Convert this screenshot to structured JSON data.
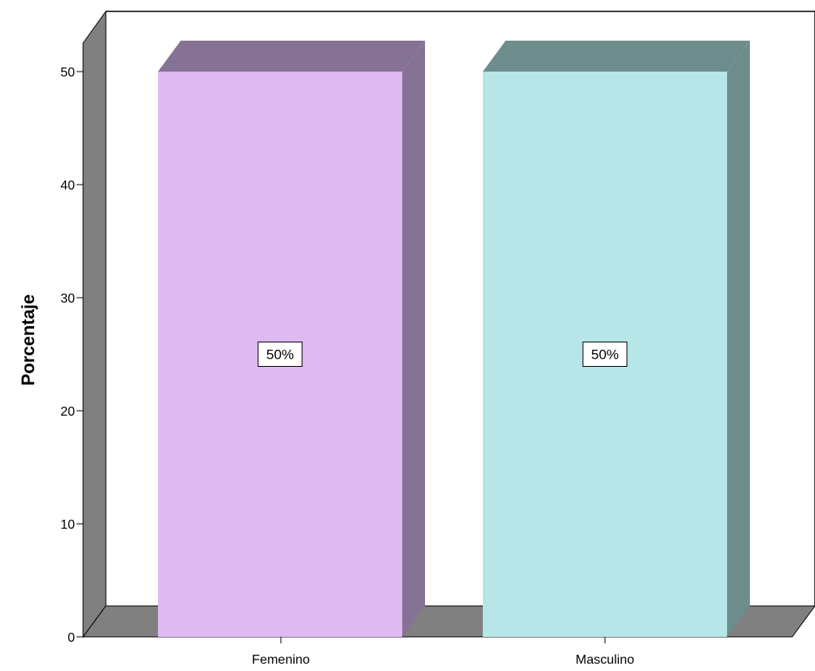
{
  "chart_data": {
    "type": "bar",
    "categories": [
      "Femenino",
      "Masculino"
    ],
    "values": [
      50,
      50
    ],
    "data_labels": [
      "50%",
      "50%"
    ],
    "ylabel": "Porcentaje",
    "xlabel": "",
    "ylim": [
      0,
      50
    ],
    "yticks": [
      0,
      10,
      20,
      30,
      40,
      50
    ],
    "grid": false,
    "legend": "none",
    "style": "3d",
    "colors": {
      "bars": [
        "#dfb9f2",
        "#b6e6e8"
      ],
      "bar_sides": [
        "#867294",
        "#6e8c8c"
      ],
      "bar_tops": [
        "#867294",
        "#6e8c8c"
      ],
      "floor": "#808080",
      "wall": "#808080",
      "background": "#ffffff"
    }
  }
}
